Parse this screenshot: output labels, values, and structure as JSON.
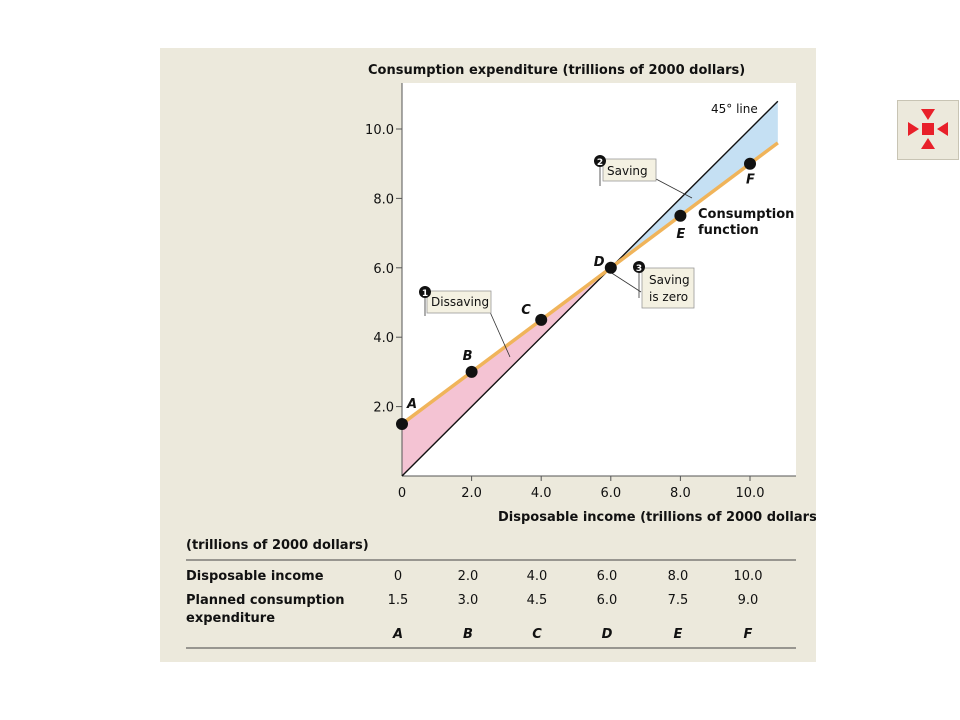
{
  "nav_button": {
    "icon": "expand-arrows-icon",
    "color": "#e8202a"
  },
  "chart_data": {
    "type": "line",
    "ylabel": "Consumption expenditure (trillions of 2000 dollars)",
    "xlabel": "Disposable income (trillions of 2000 dollars)",
    "xlim": [
      0,
      11.3
    ],
    "ylim": [
      0,
      11.3
    ],
    "x_ticks": [
      "0",
      "2.0",
      "4.0",
      "6.0",
      "8.0",
      "10.0"
    ],
    "y_ticks": [
      "2.0",
      "4.0",
      "6.0",
      "8.0",
      "10.0"
    ],
    "series": [
      {
        "name": "45° line",
        "color": "#111111",
        "x": [
          0,
          10.8
        ],
        "y": [
          0,
          10.8
        ]
      },
      {
        "name": "Consumption function",
        "color": "#f0b45a",
        "x": [
          0,
          10.8
        ],
        "y": [
          1.5,
          9.6
        ]
      }
    ],
    "points": [
      {
        "label": "A",
        "x": 0,
        "y": 1.5
      },
      {
        "label": "B",
        "x": 2.0,
        "y": 3.0
      },
      {
        "label": "C",
        "x": 4.0,
        "y": 4.5
      },
      {
        "label": "D",
        "x": 6.0,
        "y": 6.0
      },
      {
        "label": "E",
        "x": 8.0,
        "y": 7.5
      },
      {
        "label": "F",
        "x": 10.0,
        "y": 9.0
      }
    ],
    "annotations": [
      {
        "number": "1",
        "text": "Dissaving"
      },
      {
        "number": "2",
        "text": "Saving"
      },
      {
        "number": "3",
        "text": "Saving",
        "text2": "is zero"
      }
    ],
    "line_labels": {
      "line45": "45° line",
      "consumption": "Consumption",
      "consumption2": "function"
    },
    "colors": {
      "dissaving_fill": "#f4c3d3",
      "saving_fill": "#c5e0f3",
      "consumption_line": "#f0b45a"
    },
    "table": {
      "unit": "(trillions of 2000 dollars)",
      "rows": [
        {
          "label": "Disposable income",
          "values": [
            "0",
            "2.0",
            "4.0",
            "6.0",
            "8.0",
            "10.0"
          ]
        },
        {
          "label": "Planned consumption",
          "label2": "expenditure",
          "values": [
            "1.5",
            "3.0",
            "4.5",
            "6.0",
            "7.5",
            "9.0"
          ]
        }
      ],
      "letters": [
        "A",
        "B",
        "C",
        "D",
        "E",
        "F"
      ]
    }
  }
}
